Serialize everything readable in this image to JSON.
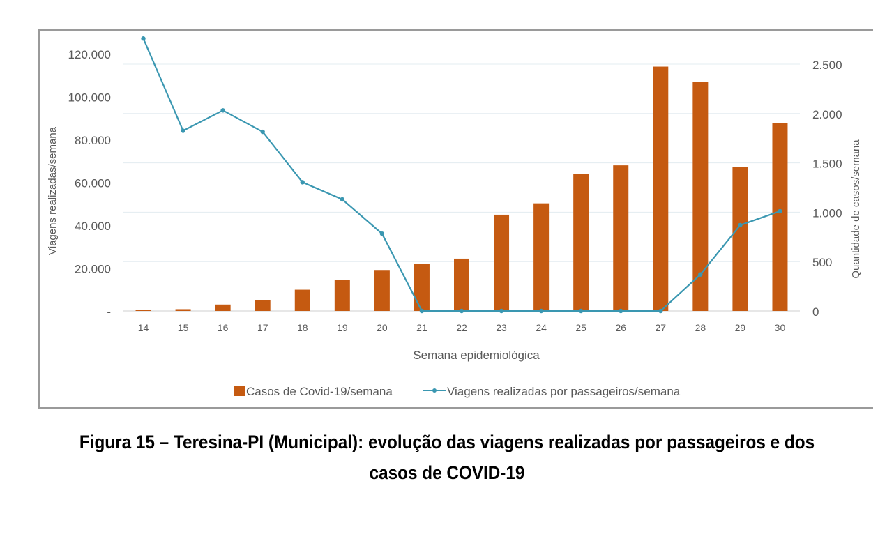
{
  "chart_data": {
    "type": "bar",
    "title": "",
    "xlabel": "Semana epidemiológica",
    "ylabel_left": "Viagens realizadas/semana",
    "ylabel_right": "Quantidade de casos/semana",
    "categories": [
      "14",
      "15",
      "16",
      "17",
      "18",
      "19",
      "20",
      "21",
      "22",
      "23",
      "24",
      "25",
      "26",
      "27",
      "28",
      "29",
      "30"
    ],
    "y_left": {
      "lim": [
        0,
        130000
      ],
      "ticks": [
        0,
        20000,
        40000,
        60000,
        80000,
        100000,
        120000
      ],
      "tick_labels": [
        "-",
        "20.000",
        "40.000",
        "60.000",
        "80.000",
        "100.000",
        "120.000"
      ]
    },
    "y_right": {
      "lim": [
        0,
        2500
      ],
      "ticks": [
        0,
        500,
        1000,
        1500,
        2000,
        2500
      ],
      "tick_labels": [
        "0",
        "500",
        "1.000",
        "1.500",
        "2.000",
        "2.500"
      ]
    },
    "grid": true,
    "legend_position": "bottom",
    "series": [
      {
        "name": "Casos de Covid-19/semana",
        "type": "bar",
        "axis": "right",
        "color": "#C55A11",
        "values": [
          14,
          18,
          65,
          110,
          215,
          315,
          415,
          475,
          530,
          975,
          1090,
          1390,
          1475,
          2475,
          2320,
          1455,
          1900
        ]
      },
      {
        "name": "Viagens realizadas por passageiros/semana",
        "type": "line",
        "axis": "left",
        "color": "#3A97B1",
        "values": [
          127000,
          84000,
          93500,
          83500,
          60000,
          52000,
          36000,
          0,
          0,
          0,
          0,
          0,
          0,
          0,
          17000,
          40000,
          46500
        ]
      }
    ]
  },
  "caption": {
    "line1": "Figura 15 – Teresina-PI (Municipal): evolução das viagens realizadas por passageiros e dos",
    "line2": "casos de COVID-19"
  }
}
